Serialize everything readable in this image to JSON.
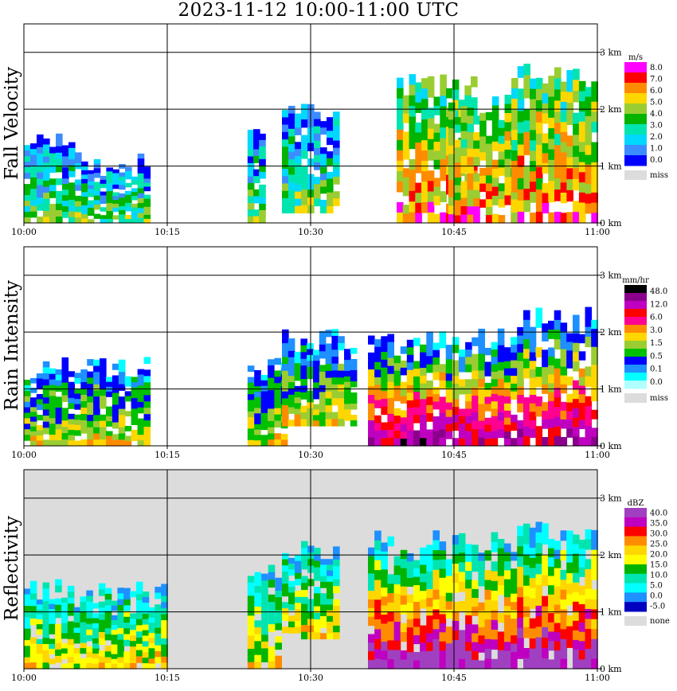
{
  "title": "2023-11-12   10:00-11:00 UTC",
  "chart_data": [
    {
      "type": "heatmap",
      "title": "Fall Velocity",
      "ylabel": "Fall Velocity",
      "x_ticks": [
        "10:00",
        "10:15",
        "10:30",
        "10:45",
        "11:00"
      ],
      "y_ticks": [
        "0 km",
        "1 km",
        "2 km",
        "3 km"
      ],
      "ylim_km": [
        0,
        3.5
      ],
      "grid": true,
      "background": "#ffffff",
      "legend": {
        "unit": "m/s",
        "placement": "right",
        "labels": [
          "8.0",
          "7.0",
          "6.0",
          "5.0",
          "4.0",
          "3.0",
          "2.0",
          "1.0",
          "0.0"
        ],
        "colors": [
          "#ff00ff",
          "#ff0000",
          "#ff8c00",
          "#ffd700",
          "#9acd32",
          "#00b400",
          "#00e5b0",
          "#00d8ff",
          "#3c8cff",
          "#0000ff"
        ],
        "missing_label": "miss",
        "missing_color": "#dcdcdc"
      }
    },
    {
      "type": "heatmap",
      "title": "Rain Intensity",
      "ylabel": "Rain Intensity",
      "x_ticks": [
        "10:00",
        "10:15",
        "10:30",
        "10:45",
        "11:00"
      ],
      "y_ticks": [
        "0 km",
        "1 km",
        "2 km",
        "3 km"
      ],
      "ylim_km": [
        0,
        3.5
      ],
      "grid": true,
      "background": "#ffffff",
      "legend": {
        "unit": "mm/hr",
        "placement": "right",
        "labels": [
          "48.0",
          "12.0",
          "6.0",
          "3.0",
          "1.5",
          "0.5",
          "0.1",
          "0.0"
        ],
        "colors": [
          "#000000",
          "#8b008b",
          "#c000c0",
          "#ff0000",
          "#ff0090",
          "#ff8c00",
          "#ffd700",
          "#9acd32",
          "#00c000",
          "#0000ff",
          "#1e90ff",
          "#00ffff",
          "#b0ffff"
        ],
        "missing_label": "miss",
        "missing_color": "#dcdcdc"
      }
    },
    {
      "type": "heatmap",
      "title": "Reflectivity",
      "ylabel": "Reflectivity",
      "x_ticks": [
        "10:00",
        "10:15",
        "10:30",
        "10:45",
        "11:00"
      ],
      "y_ticks": [
        "0 km",
        "1 km",
        "2 km",
        "3 km"
      ],
      "ylim_km": [
        0,
        3.5
      ],
      "grid": true,
      "background": "#dcdcdc",
      "legend": {
        "unit": "dBZ",
        "placement": "right",
        "labels": [
          "40.0",
          "35.0",
          "30.0",
          "25.0",
          "20.0",
          "15.0",
          "10.0",
          "5.0",
          "0.0",
          "-5.0"
        ],
        "colors": [
          "#a040c0",
          "#c000c0",
          "#ff0000",
          "#ff8c00",
          "#ffd700",
          "#ffff00",
          "#00b400",
          "#00e5b0",
          "#00ffff",
          "#1e90ff",
          "#0000c0"
        ],
        "missing_label": "none",
        "missing_color": "#dcdcdc"
      }
    }
  ]
}
